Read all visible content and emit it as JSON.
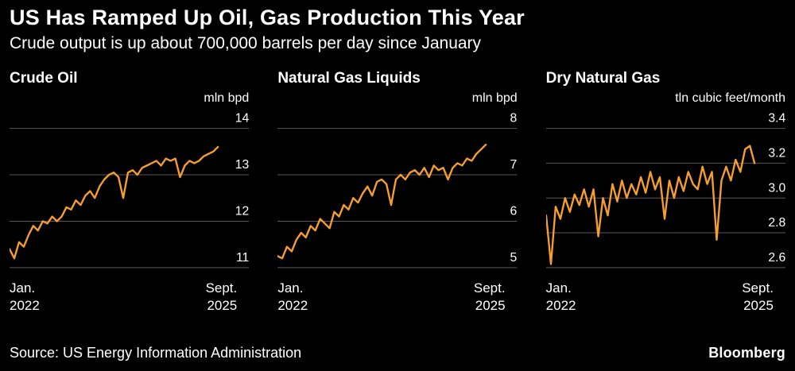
{
  "header": {
    "title": "US Has Ramped Up Oil, Gas Production This Year",
    "subtitle": "Crude output is up about 700,000 barrels per day since January"
  },
  "footer": {
    "source": "Source: US Energy Information Administration",
    "brand": "Bloomberg"
  },
  "colors": {
    "background": "#000000",
    "text": "#ffffff",
    "grid": "#5a5a5a",
    "line": "#f79e32"
  },
  "chart_data": [
    {
      "type": "line",
      "title": "Crude Oil",
      "unit": "mln bpd",
      "x_start": [
        "Jan.",
        "2022"
      ],
      "x_end": [
        "Sept.",
        "2025"
      ],
      "ylim": [
        11,
        14
      ],
      "yticks": [
        11,
        12,
        13,
        14
      ],
      "ytick_labels": [
        "11",
        "12",
        "13",
        "14"
      ],
      "values": [
        11.4,
        11.2,
        11.55,
        11.45,
        11.7,
        11.9,
        11.8,
        12.0,
        11.95,
        12.1,
        12.0,
        12.1,
        12.3,
        12.25,
        12.45,
        12.35,
        12.55,
        12.65,
        12.5,
        12.75,
        12.9,
        13.0,
        13.05,
        12.95,
        12.5,
        13.05,
        13.1,
        13.0,
        13.15,
        13.2,
        13.25,
        13.3,
        13.2,
        13.35,
        13.3,
        13.35,
        12.95,
        13.2,
        13.3,
        13.25,
        13.3,
        13.4,
        13.45,
        13.5,
        13.6
      ]
    },
    {
      "type": "line",
      "title": "Natural Gas Liquids",
      "unit": "mln bpd",
      "x_start": [
        "Jan.",
        "2022"
      ],
      "x_end": [
        "Sept.",
        "2025"
      ],
      "ylim": [
        5,
        8
      ],
      "yticks": [
        5,
        6,
        7,
        8
      ],
      "ytick_labels": [
        "5",
        "6",
        "7",
        "8"
      ],
      "values": [
        5.25,
        5.2,
        5.45,
        5.35,
        5.6,
        5.75,
        5.65,
        5.9,
        5.8,
        6.05,
        5.95,
        5.85,
        6.2,
        6.1,
        6.35,
        6.25,
        6.5,
        6.4,
        6.6,
        6.75,
        6.55,
        6.85,
        6.9,
        6.8,
        6.35,
        6.9,
        7.0,
        6.9,
        7.05,
        7.1,
        7.0,
        7.15,
        6.95,
        7.2,
        7.1,
        7.15,
        6.9,
        7.15,
        7.25,
        7.2,
        7.35,
        7.3,
        7.45,
        7.55,
        7.65
      ]
    },
    {
      "type": "line",
      "title": "Dry Natural Gas",
      "unit": "tln cubic feet/month",
      "x_start": [
        "Jan.",
        "2022"
      ],
      "x_end": [
        "Sept.",
        "2025"
      ],
      "ylim": [
        2.6,
        3.4
      ],
      "yticks": [
        2.6,
        2.8,
        3.0,
        3.2,
        3.4
      ],
      "ytick_labels": [
        "2.6",
        "2.8",
        "3.0",
        "3.2",
        "3.4"
      ],
      "values": [
        2.9,
        2.62,
        2.95,
        2.88,
        3.0,
        2.92,
        3.02,
        2.96,
        3.05,
        2.95,
        3.05,
        2.78,
        3.0,
        2.9,
        3.08,
        2.98,
        3.1,
        3.0,
        3.08,
        3.02,
        3.12,
        3.03,
        3.15,
        3.05,
        3.12,
        2.88,
        3.1,
        3.0,
        3.12,
        3.04,
        3.15,
        3.08,
        3.05,
        3.18,
        3.08,
        3.15,
        2.76,
        3.1,
        3.18,
        3.1,
        3.22,
        3.15,
        3.28,
        3.3,
        3.2
      ]
    }
  ]
}
